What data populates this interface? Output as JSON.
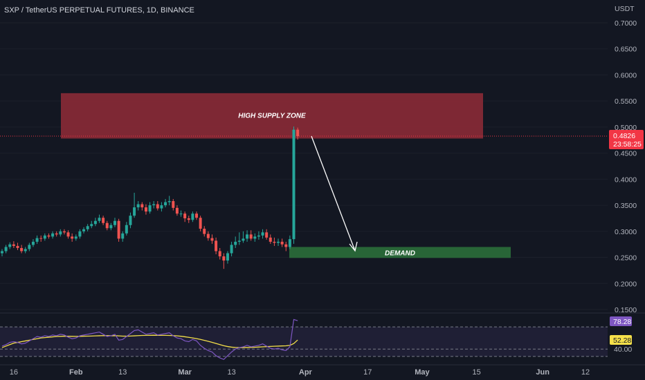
{
  "header": {
    "title": "SXP / TetherUS PERPETUAL FUTURES, 1D, BINANCE"
  },
  "price_axis": {
    "currency": "USDT",
    "ticks": [
      "0.7000",
      "0.6500",
      "0.6000",
      "0.5500",
      "0.5000",
      "0.4500",
      "0.4000",
      "0.3500",
      "0.3000",
      "0.2500",
      "0.2000",
      "0.1500"
    ],
    "last_price": "0.4826",
    "countdown": "23:58:25",
    "last_price_color": "#f23645"
  },
  "time_axis": {
    "labels": [
      {
        "text": "16",
        "bold": false
      },
      {
        "text": "Feb",
        "bold": true
      },
      {
        "text": "13",
        "bold": false
      },
      {
        "text": "Mar",
        "bold": true
      },
      {
        "text": "13",
        "bold": false
      },
      {
        "text": "Apr",
        "bold": true
      },
      {
        "text": "17",
        "bold": false
      },
      {
        "text": "May",
        "bold": true
      },
      {
        "text": "15",
        "bold": false
      },
      {
        "text": "Jun",
        "bold": true
      },
      {
        "text": "12",
        "bold": false
      }
    ]
  },
  "annotations": {
    "supply_zone": {
      "label": "HIGH SUPPLY ZONE",
      "top": 0.565,
      "bottom": 0.478,
      "color": "#8b2a36"
    },
    "demand_zone": {
      "label": "DEMAND",
      "top": 0.27,
      "bottom": 0.249,
      "color": "#2b6e3a"
    }
  },
  "rsi_panel": {
    "rsi_value": "78.28",
    "ma_value": "52.28",
    "level_label": "40.00",
    "rsi_color": "#7e57c2",
    "ma_color": "#f5e04a"
  },
  "colors": {
    "background": "#131722",
    "up": "#26a69a",
    "down": "#ef5350",
    "grid": "#1e222d"
  },
  "chart_data": {
    "type": "candlestick",
    "title": "SXP / TetherUS PERPETUAL FUTURES, 1D, BINANCE",
    "ylabel": "USDT",
    "ylim": [
      0.13,
      0.72
    ],
    "x": [
      "2023-01-13",
      "2023-01-14",
      "2023-01-15",
      "2023-01-16",
      "2023-01-17",
      "2023-01-18",
      "2023-01-19",
      "2023-01-20",
      "2023-01-21",
      "2023-01-22",
      "2023-01-23",
      "2023-01-24",
      "2023-01-25",
      "2023-01-26",
      "2023-01-27",
      "2023-01-28",
      "2023-01-29",
      "2023-01-30",
      "2023-01-31",
      "2023-02-01",
      "2023-02-02",
      "2023-02-03",
      "2023-02-04",
      "2023-02-05",
      "2023-02-06",
      "2023-02-07",
      "2023-02-08",
      "2023-02-09",
      "2023-02-10",
      "2023-02-11",
      "2023-02-12",
      "2023-02-13",
      "2023-02-14",
      "2023-02-15",
      "2023-02-16",
      "2023-02-17",
      "2023-02-18",
      "2023-02-19",
      "2023-02-20",
      "2023-02-21",
      "2023-02-22",
      "2023-02-23",
      "2023-02-24",
      "2023-02-25",
      "2023-02-26",
      "2023-02-27",
      "2023-02-28",
      "2023-03-01",
      "2023-03-02",
      "2023-03-03",
      "2023-03-04",
      "2023-03-05",
      "2023-03-06",
      "2023-03-07",
      "2023-03-08",
      "2023-03-09",
      "2023-03-10",
      "2023-03-11",
      "2023-03-12",
      "2023-03-13",
      "2023-03-14",
      "2023-03-15",
      "2023-03-16",
      "2023-03-17",
      "2023-03-18",
      "2023-03-19",
      "2023-03-20",
      "2023-03-21",
      "2023-03-22",
      "2023-03-23",
      "2023-03-24",
      "2023-03-25",
      "2023-03-26",
      "2023-03-27",
      "2023-03-28",
      "2023-03-29",
      "2023-03-30"
    ],
    "open": [
      0.258,
      0.262,
      0.27,
      0.275,
      0.272,
      0.268,
      0.262,
      0.266,
      0.274,
      0.28,
      0.287,
      0.286,
      0.292,
      0.29,
      0.296,
      0.294,
      0.3,
      0.298,
      0.29,
      0.286,
      0.29,
      0.3,
      0.304,
      0.31,
      0.314,
      0.32,
      0.326,
      0.316,
      0.306,
      0.312,
      0.32,
      0.286,
      0.296,
      0.312,
      0.33,
      0.346,
      0.352,
      0.346,
      0.338,
      0.35,
      0.352,
      0.344,
      0.35,
      0.356,
      0.358,
      0.345,
      0.334,
      0.334,
      0.325,
      0.322,
      0.334,
      0.326,
      0.305,
      0.295,
      0.287,
      0.282,
      0.262,
      0.252,
      0.244,
      0.258,
      0.274,
      0.28,
      0.282,
      0.286,
      0.294,
      0.286,
      0.29,
      0.292,
      0.298,
      0.288,
      0.28,
      0.278,
      0.28,
      0.275,
      0.27,
      0.285,
      0.495
    ],
    "close": [
      0.262,
      0.27,
      0.275,
      0.272,
      0.268,
      0.262,
      0.266,
      0.274,
      0.28,
      0.287,
      0.286,
      0.292,
      0.29,
      0.296,
      0.294,
      0.3,
      0.298,
      0.29,
      0.286,
      0.29,
      0.3,
      0.304,
      0.31,
      0.314,
      0.32,
      0.326,
      0.316,
      0.306,
      0.312,
      0.32,
      0.286,
      0.296,
      0.312,
      0.33,
      0.346,
      0.352,
      0.346,
      0.338,
      0.35,
      0.352,
      0.344,
      0.35,
      0.356,
      0.358,
      0.345,
      0.334,
      0.334,
      0.325,
      0.322,
      0.334,
      0.326,
      0.305,
      0.295,
      0.287,
      0.282,
      0.262,
      0.252,
      0.244,
      0.258,
      0.274,
      0.28,
      0.282,
      0.286,
      0.294,
      0.286,
      0.29,
      0.292,
      0.298,
      0.288,
      0.28,
      0.278,
      0.28,
      0.275,
      0.27,
      0.285,
      0.495,
      0.4826
    ],
    "high": [
      0.266,
      0.274,
      0.279,
      0.281,
      0.278,
      0.274,
      0.27,
      0.278,
      0.285,
      0.292,
      0.292,
      0.296,
      0.296,
      0.3,
      0.3,
      0.304,
      0.304,
      0.302,
      0.296,
      0.294,
      0.304,
      0.308,
      0.314,
      0.32,
      0.326,
      0.332,
      0.33,
      0.32,
      0.316,
      0.326,
      0.324,
      0.3,
      0.318,
      0.336,
      0.374,
      0.358,
      0.356,
      0.352,
      0.356,
      0.358,
      0.358,
      0.356,
      0.362,
      0.368,
      0.362,
      0.35,
      0.34,
      0.338,
      0.33,
      0.338,
      0.338,
      0.33,
      0.31,
      0.3,
      0.294,
      0.288,
      0.268,
      0.258,
      0.262,
      0.28,
      0.29,
      0.298,
      0.3,
      0.302,
      0.302,
      0.296,
      0.3,
      0.304,
      0.304,
      0.294,
      0.288,
      0.286,
      0.286,
      0.28,
      0.292,
      0.501,
      0.499
    ],
    "low": [
      0.252,
      0.258,
      0.266,
      0.268,
      0.264,
      0.258,
      0.258,
      0.262,
      0.27,
      0.276,
      0.28,
      0.282,
      0.286,
      0.286,
      0.29,
      0.29,
      0.294,
      0.286,
      0.28,
      0.282,
      0.286,
      0.296,
      0.3,
      0.306,
      0.31,
      0.316,
      0.312,
      0.302,
      0.302,
      0.308,
      0.28,
      0.28,
      0.292,
      0.306,
      0.326,
      0.34,
      0.34,
      0.332,
      0.334,
      0.344,
      0.34,
      0.338,
      0.346,
      0.35,
      0.34,
      0.33,
      0.328,
      0.318,
      0.316,
      0.318,
      0.322,
      0.3,
      0.29,
      0.282,
      0.276,
      0.256,
      0.246,
      0.228,
      0.238,
      0.252,
      0.268,
      0.274,
      0.278,
      0.28,
      0.282,
      0.28,
      0.284,
      0.286,
      0.284,
      0.276,
      0.272,
      0.272,
      0.27,
      0.262,
      0.266,
      0.276,
      0.476
    ],
    "rsi": [
      44,
      46,
      49,
      50,
      49,
      47,
      48,
      51,
      54,
      57,
      56,
      58,
      57,
      59,
      58,
      60,
      59,
      56,
      54,
      55,
      58,
      59,
      60,
      61,
      62,
      63,
      60,
      57,
      58,
      60,
      52,
      53,
      57,
      61,
      65,
      66,
      63,
      60,
      61,
      62,
      59,
      60,
      61,
      62,
      58,
      55,
      54,
      51,
      50,
      53,
      51,
      45,
      41,
      38,
      36,
      31,
      28,
      26,
      31,
      36,
      40,
      42,
      43,
      45,
      43,
      44,
      45,
      47,
      44,
      41,
      40,
      41,
      39,
      38,
      43,
      80,
      78.28
    ],
    "rsi_ma": [
      42,
      44,
      46,
      48,
      49,
      50,
      51,
      52,
      53,
      54,
      55,
      55.5,
      56,
      56.5,
      57,
      57.2,
      57.4,
      57.3,
      57.2,
      57.1,
      57.2,
      57.4,
      57.5,
      57.6,
      57.8,
      58,
      58.2,
      58.1,
      58,
      58.1,
      57.8,
      57.5,
      57.4,
      57.6,
      57.9,
      58.2,
      58.4,
      58.5,
      58.6,
      58.7,
      58.6,
      58.5,
      58.5,
      58.4,
      58.2,
      57.8,
      57.3,
      56.6,
      55.8,
      55,
      54.1,
      53,
      51.8,
      50.5,
      49.1,
      47.6,
      46,
      44.5,
      43.4,
      42.6,
      42.2,
      42,
      42,
      42.1,
      42.2,
      42.4,
      42.7,
      43,
      43.3,
      43.6,
      43.8,
      44,
      44.2,
      44.4,
      45,
      47.5,
      52.28
    ],
    "rsi_levels": [
      70,
      40,
      30
    ]
  }
}
